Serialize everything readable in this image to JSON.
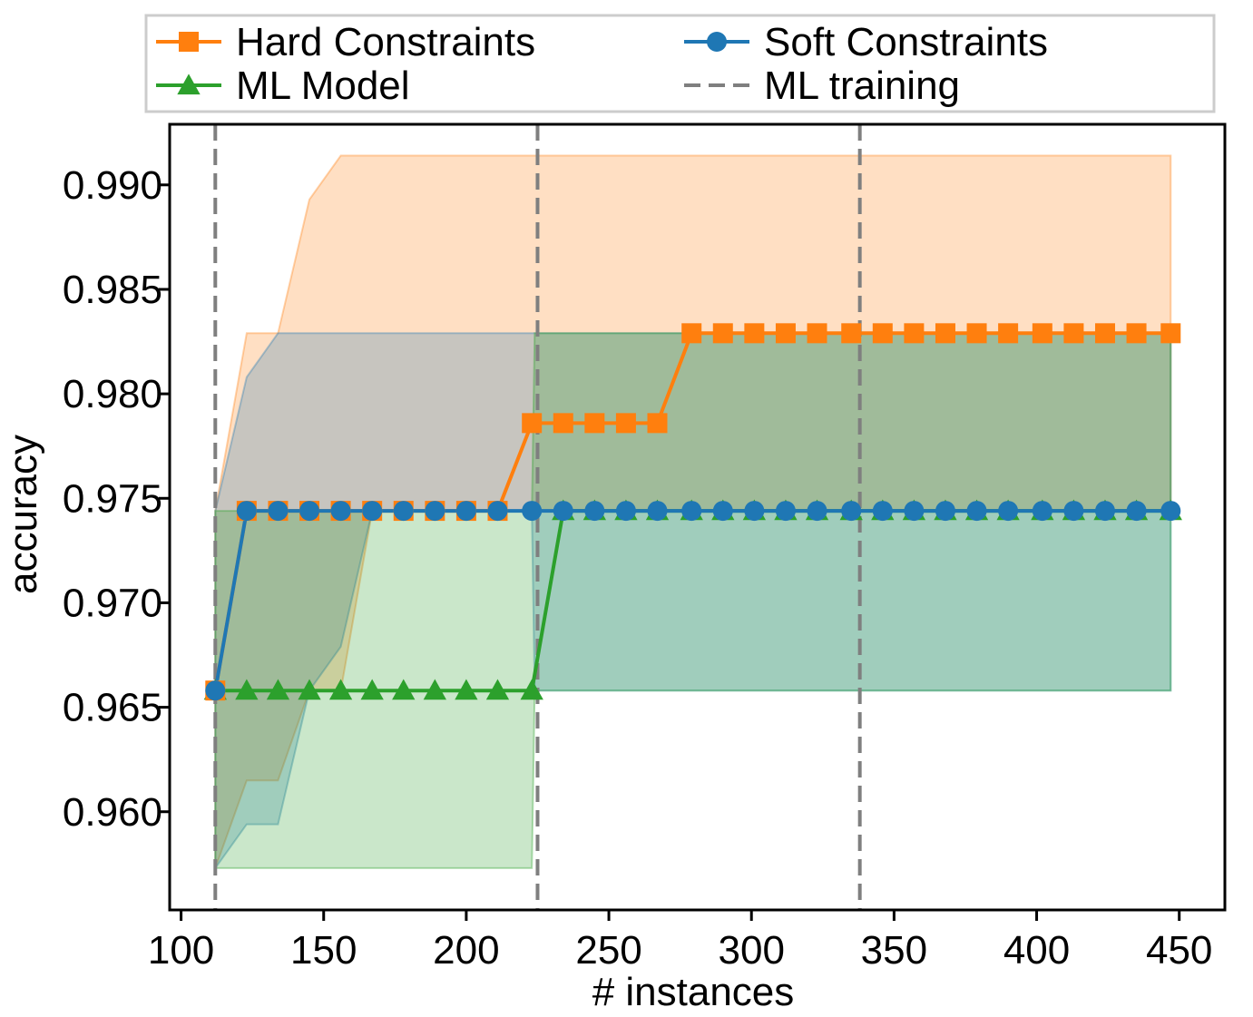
{
  "chart_data": {
    "type": "line",
    "xlabel": "# instances",
    "ylabel": "accuracy",
    "xlim": [
      96,
      466
    ],
    "ylim": [
      0.9553,
      0.9929
    ],
    "xticks": [
      100,
      150,
      200,
      250,
      300,
      350,
      400,
      450
    ],
    "xtick_labels": [
      "100",
      "150",
      "200",
      "250",
      "300",
      "350",
      "400",
      "450"
    ],
    "yticks": [
      0.96,
      0.965,
      0.97,
      0.975,
      0.98,
      0.985,
      0.99
    ],
    "ytick_labels": [
      "0.960",
      "0.965",
      "0.970",
      "0.975",
      "0.980",
      "0.985",
      "0.990"
    ],
    "x": [
      112,
      123,
      134,
      145,
      156,
      167,
      178,
      189,
      200,
      211,
      223,
      234,
      245,
      256,
      267,
      279,
      290,
      301,
      312,
      323,
      335,
      346,
      357,
      368,
      379,
      390,
      402,
      413,
      424,
      435,
      447
    ],
    "series": [
      {
        "name": "Hard Constraints",
        "color": "#ff7f0e",
        "marker": "square",
        "values": [
          0.9658,
          0.9744,
          0.9744,
          0.9744,
          0.9744,
          0.9744,
          0.9744,
          0.9744,
          0.9744,
          0.9744,
          0.9786,
          0.9786,
          0.9786,
          0.9786,
          0.9786,
          0.9829,
          0.9829,
          0.9829,
          0.9829,
          0.9829,
          0.9829,
          0.9829,
          0.9829,
          0.9829,
          0.9829,
          0.9829,
          0.9829,
          0.9829,
          0.9829,
          0.9829,
          0.9829
        ],
        "band": {
          "x": [
            112,
            123,
            134,
            145,
            156,
            167,
            447
          ],
          "lower": [
            0.9573,
            0.9615,
            0.9615,
            0.9658,
            0.9658,
            0.9744,
            0.9744
          ],
          "upper": [
            0.9744,
            0.9829,
            0.9829,
            0.9893,
            0.9914,
            0.9914,
            0.9914
          ]
        }
      },
      {
        "name": "Soft Constraints",
        "color": "#1f77b4",
        "marker": "circle",
        "values": [
          0.9658,
          0.9744,
          0.9744,
          0.9744,
          0.9744,
          0.9744,
          0.9744,
          0.9744,
          0.9744,
          0.9744,
          0.9744,
          0.9744,
          0.9744,
          0.9744,
          0.9744,
          0.9744,
          0.9744,
          0.9744,
          0.9744,
          0.9744,
          0.9744,
          0.9744,
          0.9744,
          0.9744,
          0.9744,
          0.9744,
          0.9744,
          0.9744,
          0.9744,
          0.9744,
          0.9744
        ],
        "band": {
          "x": [
            112,
            123,
            134,
            145,
            156,
            167,
            223,
            224,
            447
          ],
          "lower": [
            0.9573,
            0.9594,
            0.9594,
            0.9658,
            0.9679,
            0.9744,
            0.9744,
            0.9658,
            0.9658
          ],
          "upper": [
            0.9744,
            0.9808,
            0.9829,
            0.9829,
            0.9829,
            0.9829,
            0.9829,
            0.9829,
            0.9829
          ]
        }
      },
      {
        "name": "ML Model",
        "color": "#2ca02c",
        "marker": "triangle",
        "values": [
          0.9658,
          0.9658,
          0.9658,
          0.9658,
          0.9658,
          0.9658,
          0.9658,
          0.9658,
          0.9658,
          0.9658,
          0.9658,
          0.9744,
          0.9744,
          0.9744,
          0.9744,
          0.9744,
          0.9744,
          0.9744,
          0.9744,
          0.9744,
          0.9744,
          0.9744,
          0.9744,
          0.9744,
          0.9744,
          0.9744,
          0.9744,
          0.9744,
          0.9744,
          0.9744,
          0.9744
        ],
        "band": {
          "x": [
            112,
            223,
            224,
            447
          ],
          "lower": [
            0.9573,
            0.9573,
            0.9658,
            0.9658
          ],
          "upper": [
            0.9744,
            0.9744,
            0.9829,
            0.9829
          ]
        }
      }
    ],
    "vlines": {
      "name": "ML training",
      "color": "#7f7f7f",
      "style": "dashed",
      "x": [
        112,
        225,
        338
      ]
    },
    "legend": {
      "placement": "top, outside plot, 2 columns",
      "entries": [
        {
          "label": "Hard Constraints",
          "color": "#ff7f0e",
          "marker": "square",
          "style": "solid"
        },
        {
          "label": "Soft Constraints",
          "color": "#1f77b4",
          "marker": "circle",
          "style": "solid"
        },
        {
          "label": "ML Model",
          "color": "#2ca02c",
          "marker": "triangle",
          "style": "solid"
        },
        {
          "label": "ML training",
          "color": "#7f7f7f",
          "marker": "none",
          "style": "dashed"
        }
      ]
    },
    "grid": false
  }
}
